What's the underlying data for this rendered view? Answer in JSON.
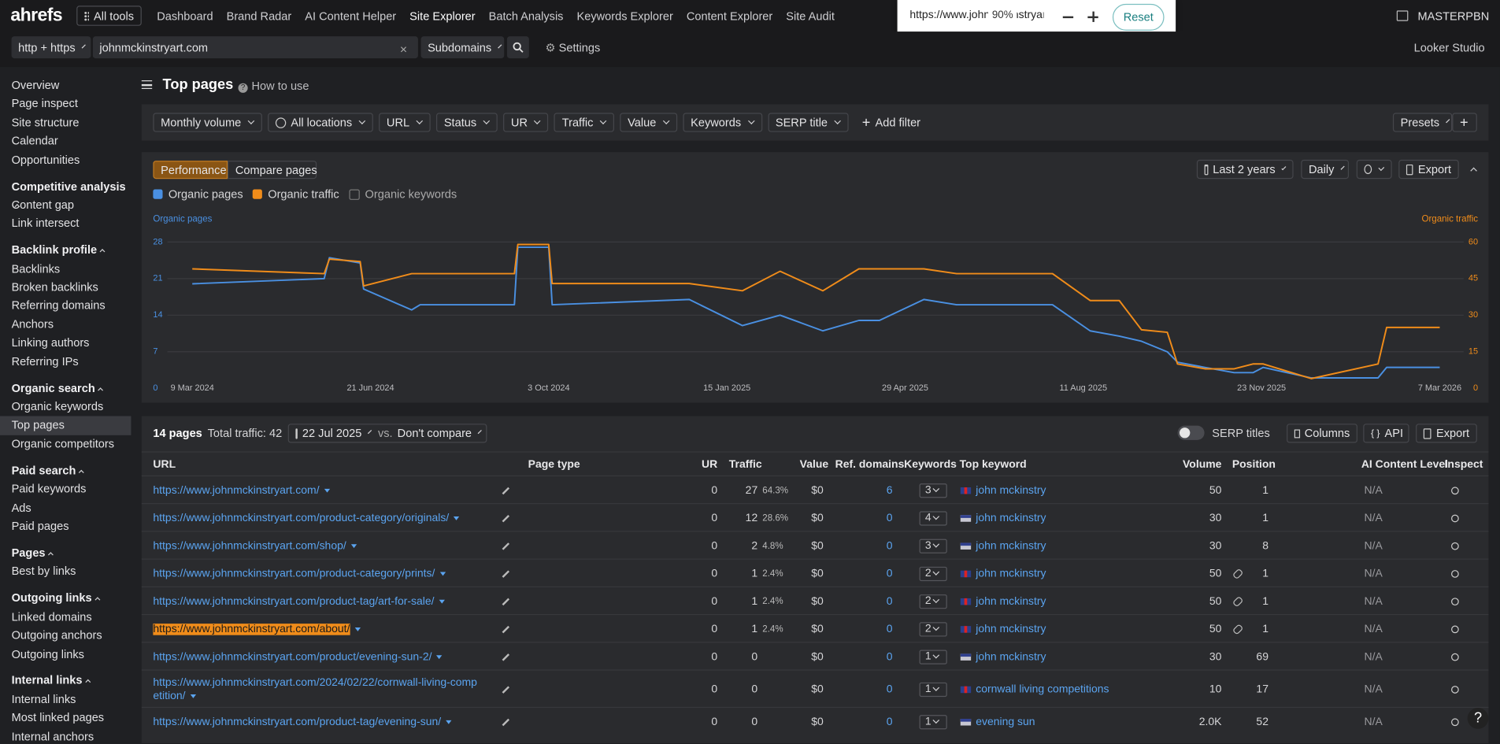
{
  "nav": {
    "logo": "ahrefs",
    "all_tools": "All tools",
    "items": [
      "Dashboard",
      "Brand Radar",
      "AI Content Helper",
      "Site Explorer",
      "Batch Analysis",
      "Keywords Explorer",
      "Content Explorer",
      "Site Audit"
    ],
    "user": "MASTERPBN"
  },
  "zoom_popup": {
    "url": "https://www.johnmckinstryart",
    "zoom": "90%",
    "reset": "Reset"
  },
  "search_bar": {
    "protocol": "http + https",
    "target": "johnmckinstryart.com",
    "mode": "Subdomains",
    "settings": "Settings",
    "looker": "Looker Studio"
  },
  "sidebar": {
    "groups": [
      {
        "items": [
          "Overview",
          "Page inspect",
          "Site structure",
          "Calendar",
          "Opportunities"
        ]
      },
      {
        "header": "Competitive analysis",
        "items": [
          "Content gap",
          "Link intersect"
        ]
      },
      {
        "header": "Backlink profile",
        "items": [
          "Backlinks",
          "Broken backlinks",
          "Referring domains",
          "Anchors",
          "Linking authors",
          "Referring IPs"
        ]
      },
      {
        "header": "Organic search",
        "items": [
          "Organic keywords",
          "Top pages",
          "Organic competitors"
        ]
      },
      {
        "header": "Paid search",
        "items": [
          "Paid keywords",
          "Ads",
          "Paid pages"
        ]
      },
      {
        "header": "Pages",
        "items": [
          "Best by links"
        ]
      },
      {
        "header": "Outgoing links",
        "items": [
          "Linked domains",
          "Outgoing anchors",
          "Outgoing links"
        ]
      },
      {
        "header": "Internal links",
        "items": [
          "Internal links",
          "Most linked pages",
          "Internal anchors"
        ]
      }
    ]
  },
  "page_header": {
    "title": "Top pages",
    "how_to": "How to use"
  },
  "filters": {
    "items": [
      "Monthly volume",
      "All locations",
      "URL",
      "Status",
      "UR",
      "Traffic",
      "Value",
      "Keywords",
      "SERP title"
    ],
    "add": "Add filter",
    "presets": "Presets"
  },
  "chart_panel": {
    "tabs": [
      "Performance",
      "Compare pages"
    ],
    "period": "Last 2 years",
    "granularity": "Daily",
    "export": "Export",
    "extra_metric": "Organic keywords"
  },
  "chart_data": {
    "type": "line",
    "ylabel": "Organic pages",
    "y2label": "Organic traffic",
    "x": [
      "9 Mar 2024",
      "25 May 2024",
      "28 May 2024",
      "15 Jun 2024",
      "17 Jun 2024",
      "15 Jul 2024",
      "20 Jul 2024",
      "13 Sep 2024",
      "15 Sep 2024",
      "3 Oct 2024",
      "5 Oct 2024",
      "24 Dec 2024",
      "24 Jan 2025",
      "15 Feb 2025",
      "12 Mar 2025",
      "2 Apr 2025",
      "14 Apr 2025",
      "10 May 2025",
      "29 May 2025",
      "24 Jul 2025",
      "15 Aug 2025",
      "1 Sep 2025",
      "14 Sep 2025",
      "29 Sep 2025",
      "5 Oct 2025",
      "21 Oct 2025",
      "7 Nov 2025",
      "18 Nov 2025",
      "24 Nov 2025",
      "22 Dec 2025",
      "30 Jan 2026",
      "4 Feb 2026",
      "7 Mar 2026"
    ],
    "series": [
      {
        "name": "Organic pages",
        "color": "#4a90e2",
        "values": [
          20,
          21,
          25,
          24,
          19,
          15,
          16,
          16,
          27,
          27,
          16,
          17,
          12,
          14,
          11,
          13,
          13,
          17,
          16,
          16,
          11,
          10,
          9,
          7,
          5,
          4,
          3,
          3,
          4,
          2,
          2,
          4,
          4
        ]
      },
      {
        "name": "Organic traffic",
        "color": "#f08c1a",
        "axis": "y2",
        "values": [
          49,
          47,
          53,
          52,
          42,
          47,
          47,
          47,
          59,
          59,
          43,
          43,
          40,
          48,
          40,
          49,
          49,
          49,
          47,
          47,
          36,
          36,
          24,
          23,
          10,
          8,
          8,
          10,
          10,
          4,
          10,
          25,
          25
        ]
      }
    ],
    "xlim": [
      "9 Mar 2024",
      "7 Mar 2026"
    ],
    "xticks": [
      "9 Mar 2024",
      "21 Jun 2024",
      "3 Oct 2024",
      "15 Jan 2025",
      "29 Apr 2025",
      "11 Aug 2025",
      "23 Nov 2025",
      "7 Mar 2026"
    ],
    "ylim": [
      0,
      28
    ],
    "yticks": [
      0,
      7,
      14,
      21,
      28
    ],
    "y2lim": [
      0,
      60
    ],
    "y2ticks": [
      0,
      15,
      30,
      45,
      60
    ],
    "grid": true
  },
  "table": {
    "count": "14 pages",
    "total_traffic": "Total traffic: 42",
    "date": "22 Jul 2025",
    "vs": "vs.",
    "compare": "Don't compare",
    "serp_titles": "SERP titles",
    "columns_btn": "Columns",
    "api": "API",
    "export": "Export",
    "columns": [
      "URL",
      "Page type",
      "UR",
      "Traffic",
      "Value",
      "Ref. domains",
      "Keywords",
      "Top keyword",
      "Volume",
      "Position",
      "AI Content Level",
      "Inspect"
    ],
    "rows": [
      {
        "url": "https://www.johnmckinstryart.com/",
        "ur": "0",
        "traffic": "27",
        "share": "64.3%",
        "value": "$0",
        "ref_domains": "6",
        "keywords": "3",
        "flag": "uk",
        "top_keyword": "john mckinstry",
        "volume": "50",
        "position": "1",
        "ai": "N/A"
      },
      {
        "url": "https://www.johnmckinstryart.com/product-category/originals/",
        "ur": "0",
        "traffic": "12",
        "share": "28.6%",
        "value": "$0",
        "ref_domains": "0",
        "keywords": "4",
        "flag": "us",
        "top_keyword": "john mckinstry",
        "volume": "30",
        "position": "1",
        "ai": "N/A"
      },
      {
        "url": "https://www.johnmckinstryart.com/shop/",
        "ur": "0",
        "traffic": "2",
        "share": "4.8%",
        "value": "$0",
        "ref_domains": "0",
        "keywords": "3",
        "flag": "us",
        "top_keyword": "john mckinstry",
        "volume": "30",
        "position": "8",
        "ai": "N/A"
      },
      {
        "url": "https://www.johnmckinstryart.com/product-category/prints/",
        "ur": "0",
        "traffic": "1",
        "share": "2.4%",
        "value": "$0",
        "ref_domains": "0",
        "keywords": "2",
        "flag": "uk",
        "top_keyword": "john mckinstry",
        "volume": "50",
        "sitelink": true,
        "position": "1",
        "ai": "N/A"
      },
      {
        "url": "https://www.johnmckinstryart.com/product-tag/art-for-sale/",
        "ur": "0",
        "traffic": "1",
        "share": "2.4%",
        "value": "$0",
        "ref_domains": "0",
        "keywords": "2",
        "flag": "uk",
        "top_keyword": "john mckinstry",
        "volume": "50",
        "sitelink": true,
        "position": "1",
        "ai": "N/A"
      },
      {
        "url": "https://www.johnmckinstryart.com/about/",
        "ur": "0",
        "traffic": "1",
        "share": "2.4%",
        "value": "$0",
        "ref_domains": "0",
        "keywords": "2",
        "flag": "uk",
        "top_keyword": "john mckinstry",
        "volume": "50",
        "sitelink": true,
        "position": "1",
        "ai": "N/A"
      },
      {
        "url": "https://www.johnmckinstryart.com/product/evening-sun-2/",
        "ur": "0",
        "traffic": "0",
        "value": "$0",
        "ref_domains": "0",
        "keywords": "1",
        "flag": "us",
        "top_keyword": "john mckinstry",
        "volume": "30",
        "position": "69",
        "ai": "N/A"
      },
      {
        "url": "https://www.johnmckinstryart.com/2024/02/22/cornwall-living-competition/",
        "ur": "0",
        "traffic": "0",
        "value": "$0",
        "ref_domains": "0",
        "keywords": "1",
        "flag": "uk",
        "top_keyword": "cornwall living competitions",
        "volume": "10",
        "position": "17",
        "ai": "N/A"
      },
      {
        "url": "https://www.johnmckinstryart.com/product-tag/evening-sun/",
        "ur": "0",
        "traffic": "0",
        "value": "$0",
        "ref_domains": "0",
        "keywords": "1",
        "flag": "us",
        "top_keyword": "evening sun",
        "volume": "2.0K",
        "position": "52",
        "ai": "N/A"
      }
    ]
  }
}
